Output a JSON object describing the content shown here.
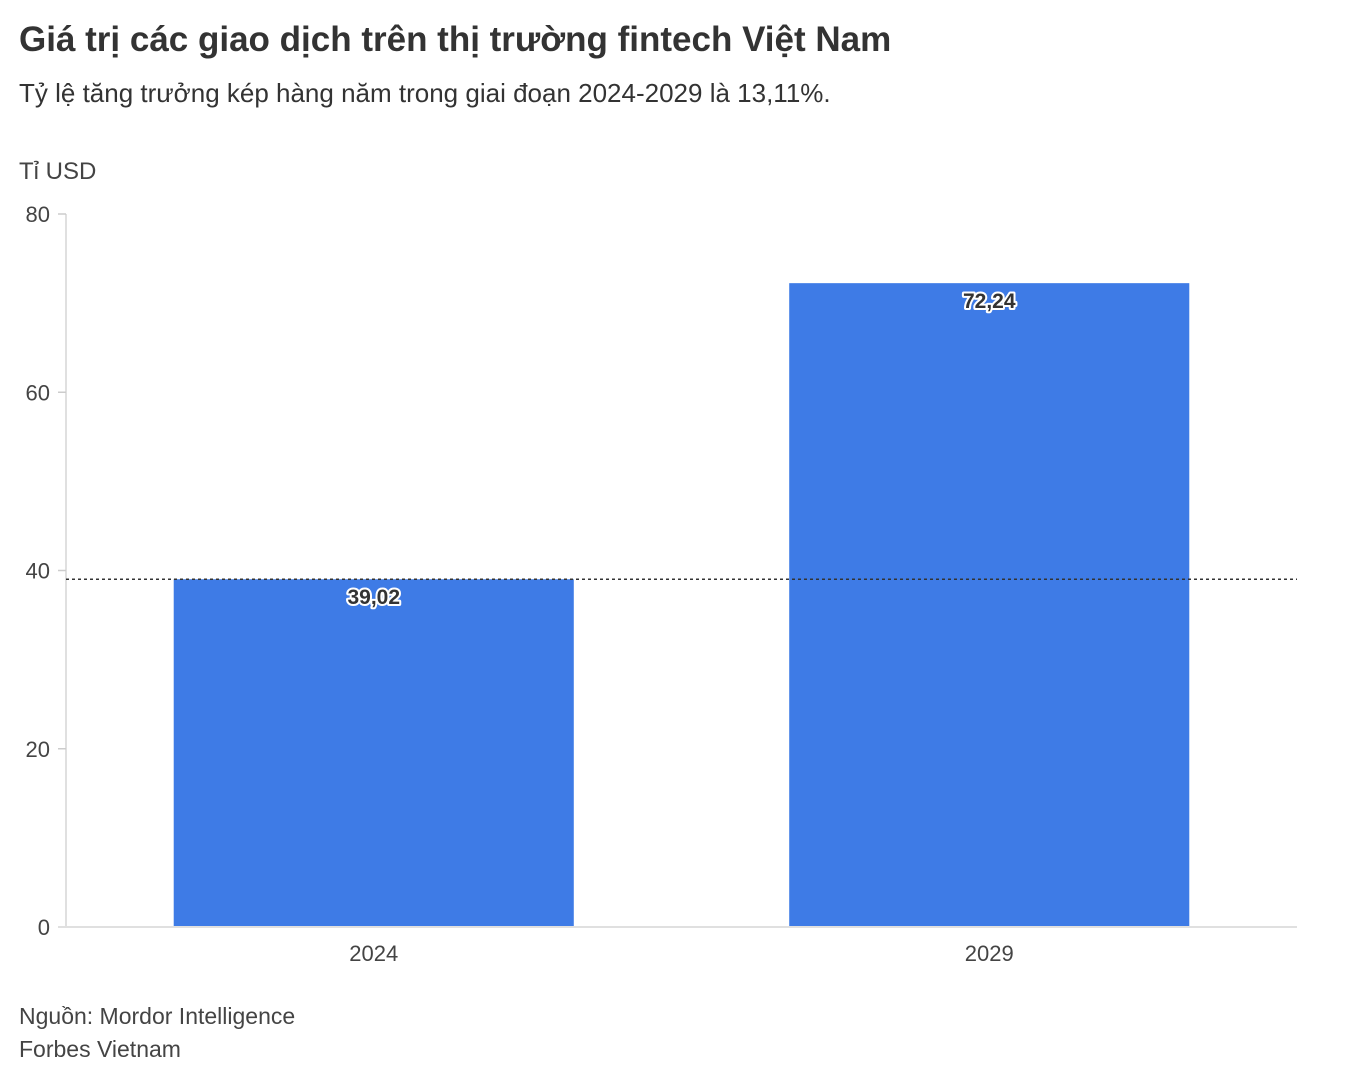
{
  "header": {
    "title": "Giá trị các giao dịch trên thị trường fintech Việt Nam",
    "subtitle": "Tỷ lệ tăng trưởng kép hàng năm trong giai đoạn 2024-2029 là 13,11%."
  },
  "chart_data": {
    "type": "bar",
    "categories": [
      "2024",
      "2029"
    ],
    "values": [
      39.02,
      72.24
    ],
    "data_labels": [
      "39,02",
      "72,24"
    ],
    "ylabel": "Tỉ USD",
    "ylim": [
      0,
      80
    ],
    "yticks": [
      "0",
      "20",
      "40",
      "60",
      "80"
    ],
    "reference_line": 39.02,
    "bar_color": "#3e7be6",
    "grid": false,
    "legend": "none"
  },
  "footer": {
    "source": "Nguồn: Mordor Intelligence",
    "publisher": "Forbes Vietnam"
  }
}
